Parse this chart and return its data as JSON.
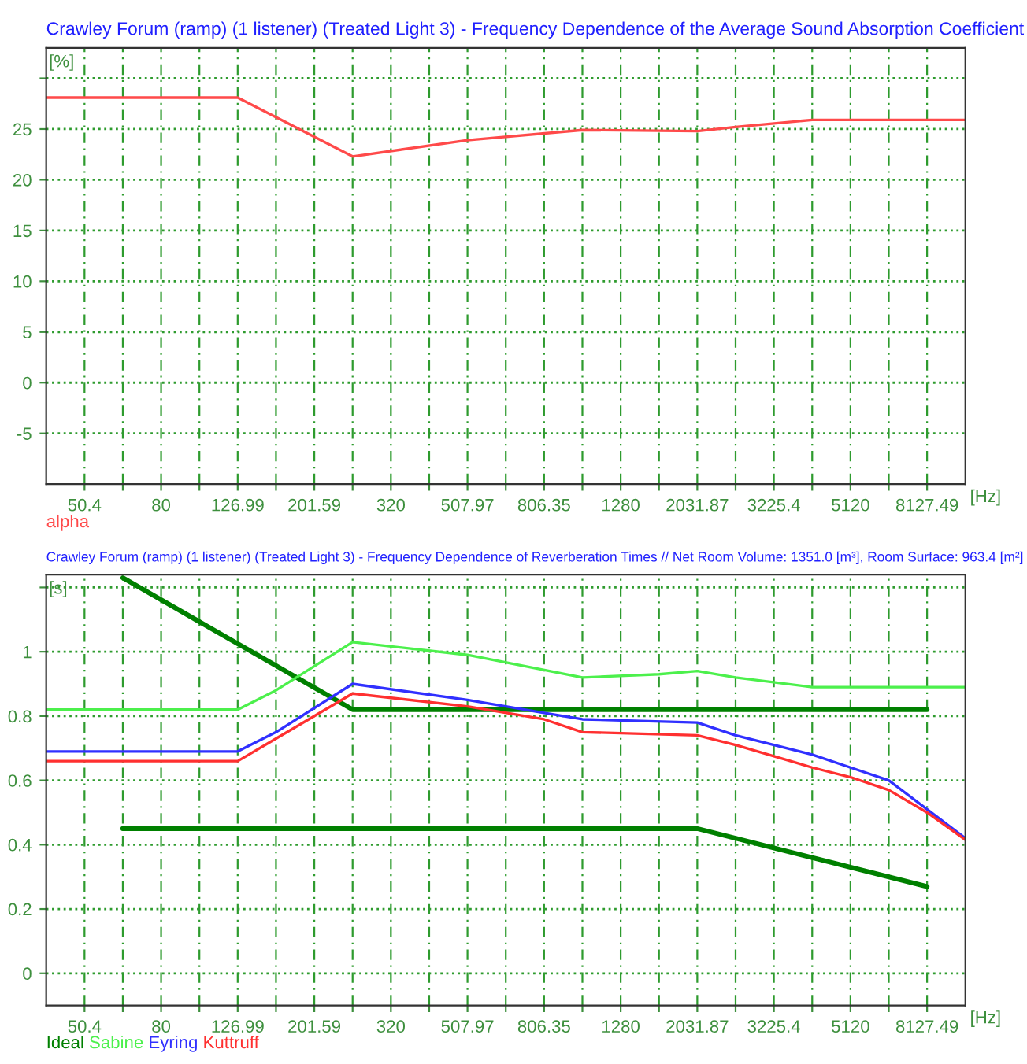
{
  "chart_data": [
    {
      "type": "line",
      "title": "Crawley Forum (ramp) (1 listener) (Treated Light 3) - Frequency Dependence of the Average Sound Absorption Coefficient",
      "ylabel": "[%]",
      "xlabel": "[Hz]",
      "log": "x",
      "xlim": [
        40,
        10240
      ],
      "ylim": [
        -10,
        33
      ],
      "xticks": [
        {
          "value": 50.4,
          "label": "50.4"
        },
        {
          "value": 63.5,
          "label": null
        },
        {
          "value": 80,
          "label": "80"
        },
        {
          "value": 100.8,
          "label": null
        },
        {
          "value": 126.99,
          "label": "126.99"
        },
        {
          "value": 160,
          "label": null
        },
        {
          "value": 201.59,
          "label": "201.59"
        },
        {
          "value": 254,
          "label": null
        },
        {
          "value": 320,
          "label": "320"
        },
        {
          "value": 403.2,
          "label": null
        },
        {
          "value": 507.97,
          "label": "507.97"
        },
        {
          "value": 640,
          "label": null
        },
        {
          "value": 806.35,
          "label": "806.35"
        },
        {
          "value": 1016,
          "label": null
        },
        {
          "value": 1280,
          "label": "1280"
        },
        {
          "value": 1612.8,
          "label": null
        },
        {
          "value": 2031.87,
          "label": "2031.87"
        },
        {
          "value": 2560,
          "label": null
        },
        {
          "value": 3225.4,
          "label": "3225.4"
        },
        {
          "value": 4064,
          "label": null
        },
        {
          "value": 5120,
          "label": "5120"
        },
        {
          "value": 6450.8,
          "label": null
        },
        {
          "value": 8127.49,
          "label": "8127.49"
        }
      ],
      "yticks": [
        -5,
        0,
        5,
        10,
        15,
        20,
        25,
        {
          "value": 30,
          "label": null
        }
      ],
      "grid": true,
      "legend": "bottom left",
      "marker": "none",
      "line_style": "solid",
      "series": [
        {
          "name": "alpha",
          "color": "#ff4a4a",
          "x": [
            40,
            126.99,
            254,
            507.97,
            1016,
            2031.87,
            2560,
            4064,
            10240
          ],
          "values": [
            28.1,
            28.1,
            22.3,
            23.9,
            24.9,
            24.8,
            25.2,
            25.9,
            25.9
          ]
        }
      ]
    },
    {
      "type": "line",
      "title": "Crawley Forum (ramp) (1 listener) (Treated Light 3) - Frequency Dependence of Reverberation Times // Net Room Volume: 1351.0 [m³], Room Surface: 963.4 [m²]",
      "ylabel": "[s]",
      "xlabel": "[Hz]",
      "log": "x",
      "xlim": [
        40,
        10240
      ],
      "ylim": [
        -0.1,
        1.24
      ],
      "xticks": [
        {
          "value": 50.4,
          "label": "50.4"
        },
        {
          "value": 63.5,
          "label": null
        },
        {
          "value": 80,
          "label": "80"
        },
        {
          "value": 100.8,
          "label": null
        },
        {
          "value": 126.99,
          "label": "126.99"
        },
        {
          "value": 160,
          "label": null
        },
        {
          "value": 201.59,
          "label": "201.59"
        },
        {
          "value": 254,
          "label": null
        },
        {
          "value": 320,
          "label": "320"
        },
        {
          "value": 403.2,
          "label": null
        },
        {
          "value": 507.97,
          "label": "507.97"
        },
        {
          "value": 640,
          "label": null
        },
        {
          "value": 806.35,
          "label": "806.35"
        },
        {
          "value": 1016,
          "label": null
        },
        {
          "value": 1280,
          "label": "1280"
        },
        {
          "value": 1612.8,
          "label": null
        },
        {
          "value": 2031.87,
          "label": "2031.87"
        },
        {
          "value": 2560,
          "label": null
        },
        {
          "value": 3225.4,
          "label": "3225.4"
        },
        {
          "value": 4064,
          "label": null
        },
        {
          "value": 5120,
          "label": "5120"
        },
        {
          "value": 6450.8,
          "label": null
        },
        {
          "value": 8127.49,
          "label": "8127.49"
        }
      ],
      "yticks": [
        0,
        0.2,
        0.4,
        0.6,
        0.8,
        1,
        {
          "value": 1.2,
          "label": null
        }
      ],
      "grid": true,
      "legend": "bottom left",
      "marker": "none",
      "line_style": "solid",
      "series": [
        {
          "name": "Ideal",
          "color": "#008000",
          "x": [
            63.5,
            254,
            8127.49
          ],
          "values": [
            1.23,
            0.82,
            0.82
          ]
        },
        {
          "color": "#008000",
          "x": [
            63.5,
            2031.87,
            8127.49
          ],
          "values": [
            0.45,
            0.45,
            0.27
          ]
        },
        {
          "name": "Sabine",
          "color": "#4cf04c",
          "x": [
            40,
            126.99,
            160,
            254,
            507.97,
            1016,
            1612.8,
            2031.87,
            2560,
            4064,
            10240
          ],
          "values": [
            0.82,
            0.82,
            0.88,
            1.03,
            0.99,
            0.92,
            0.93,
            0.94,
            0.92,
            0.89,
            0.89
          ]
        },
        {
          "name": "Eyring",
          "color": "#3030ff",
          "x": [
            40,
            126.99,
            160,
            254,
            507.97,
            806.35,
            1016,
            2031.87,
            2560,
            4064,
            5120,
            6450.8,
            8127.49,
            10240
          ],
          "values": [
            0.69,
            0.69,
            0.75,
            0.9,
            0.85,
            0.81,
            0.79,
            0.78,
            0.74,
            0.68,
            0.64,
            0.6,
            0.51,
            0.42
          ]
        },
        {
          "name": "Kuttruff",
          "color": "#ff3030",
          "x": [
            40,
            126.99,
            160,
            254,
            507.97,
            806.35,
            1016,
            2031.87,
            2560,
            4064,
            5120,
            6450.8,
            8127.49,
            10240
          ],
          "values": [
            0.66,
            0.66,
            0.73,
            0.87,
            0.83,
            0.79,
            0.75,
            0.74,
            0.71,
            0.64,
            0.61,
            0.57,
            0.5,
            0.415
          ]
        }
      ]
    }
  ]
}
